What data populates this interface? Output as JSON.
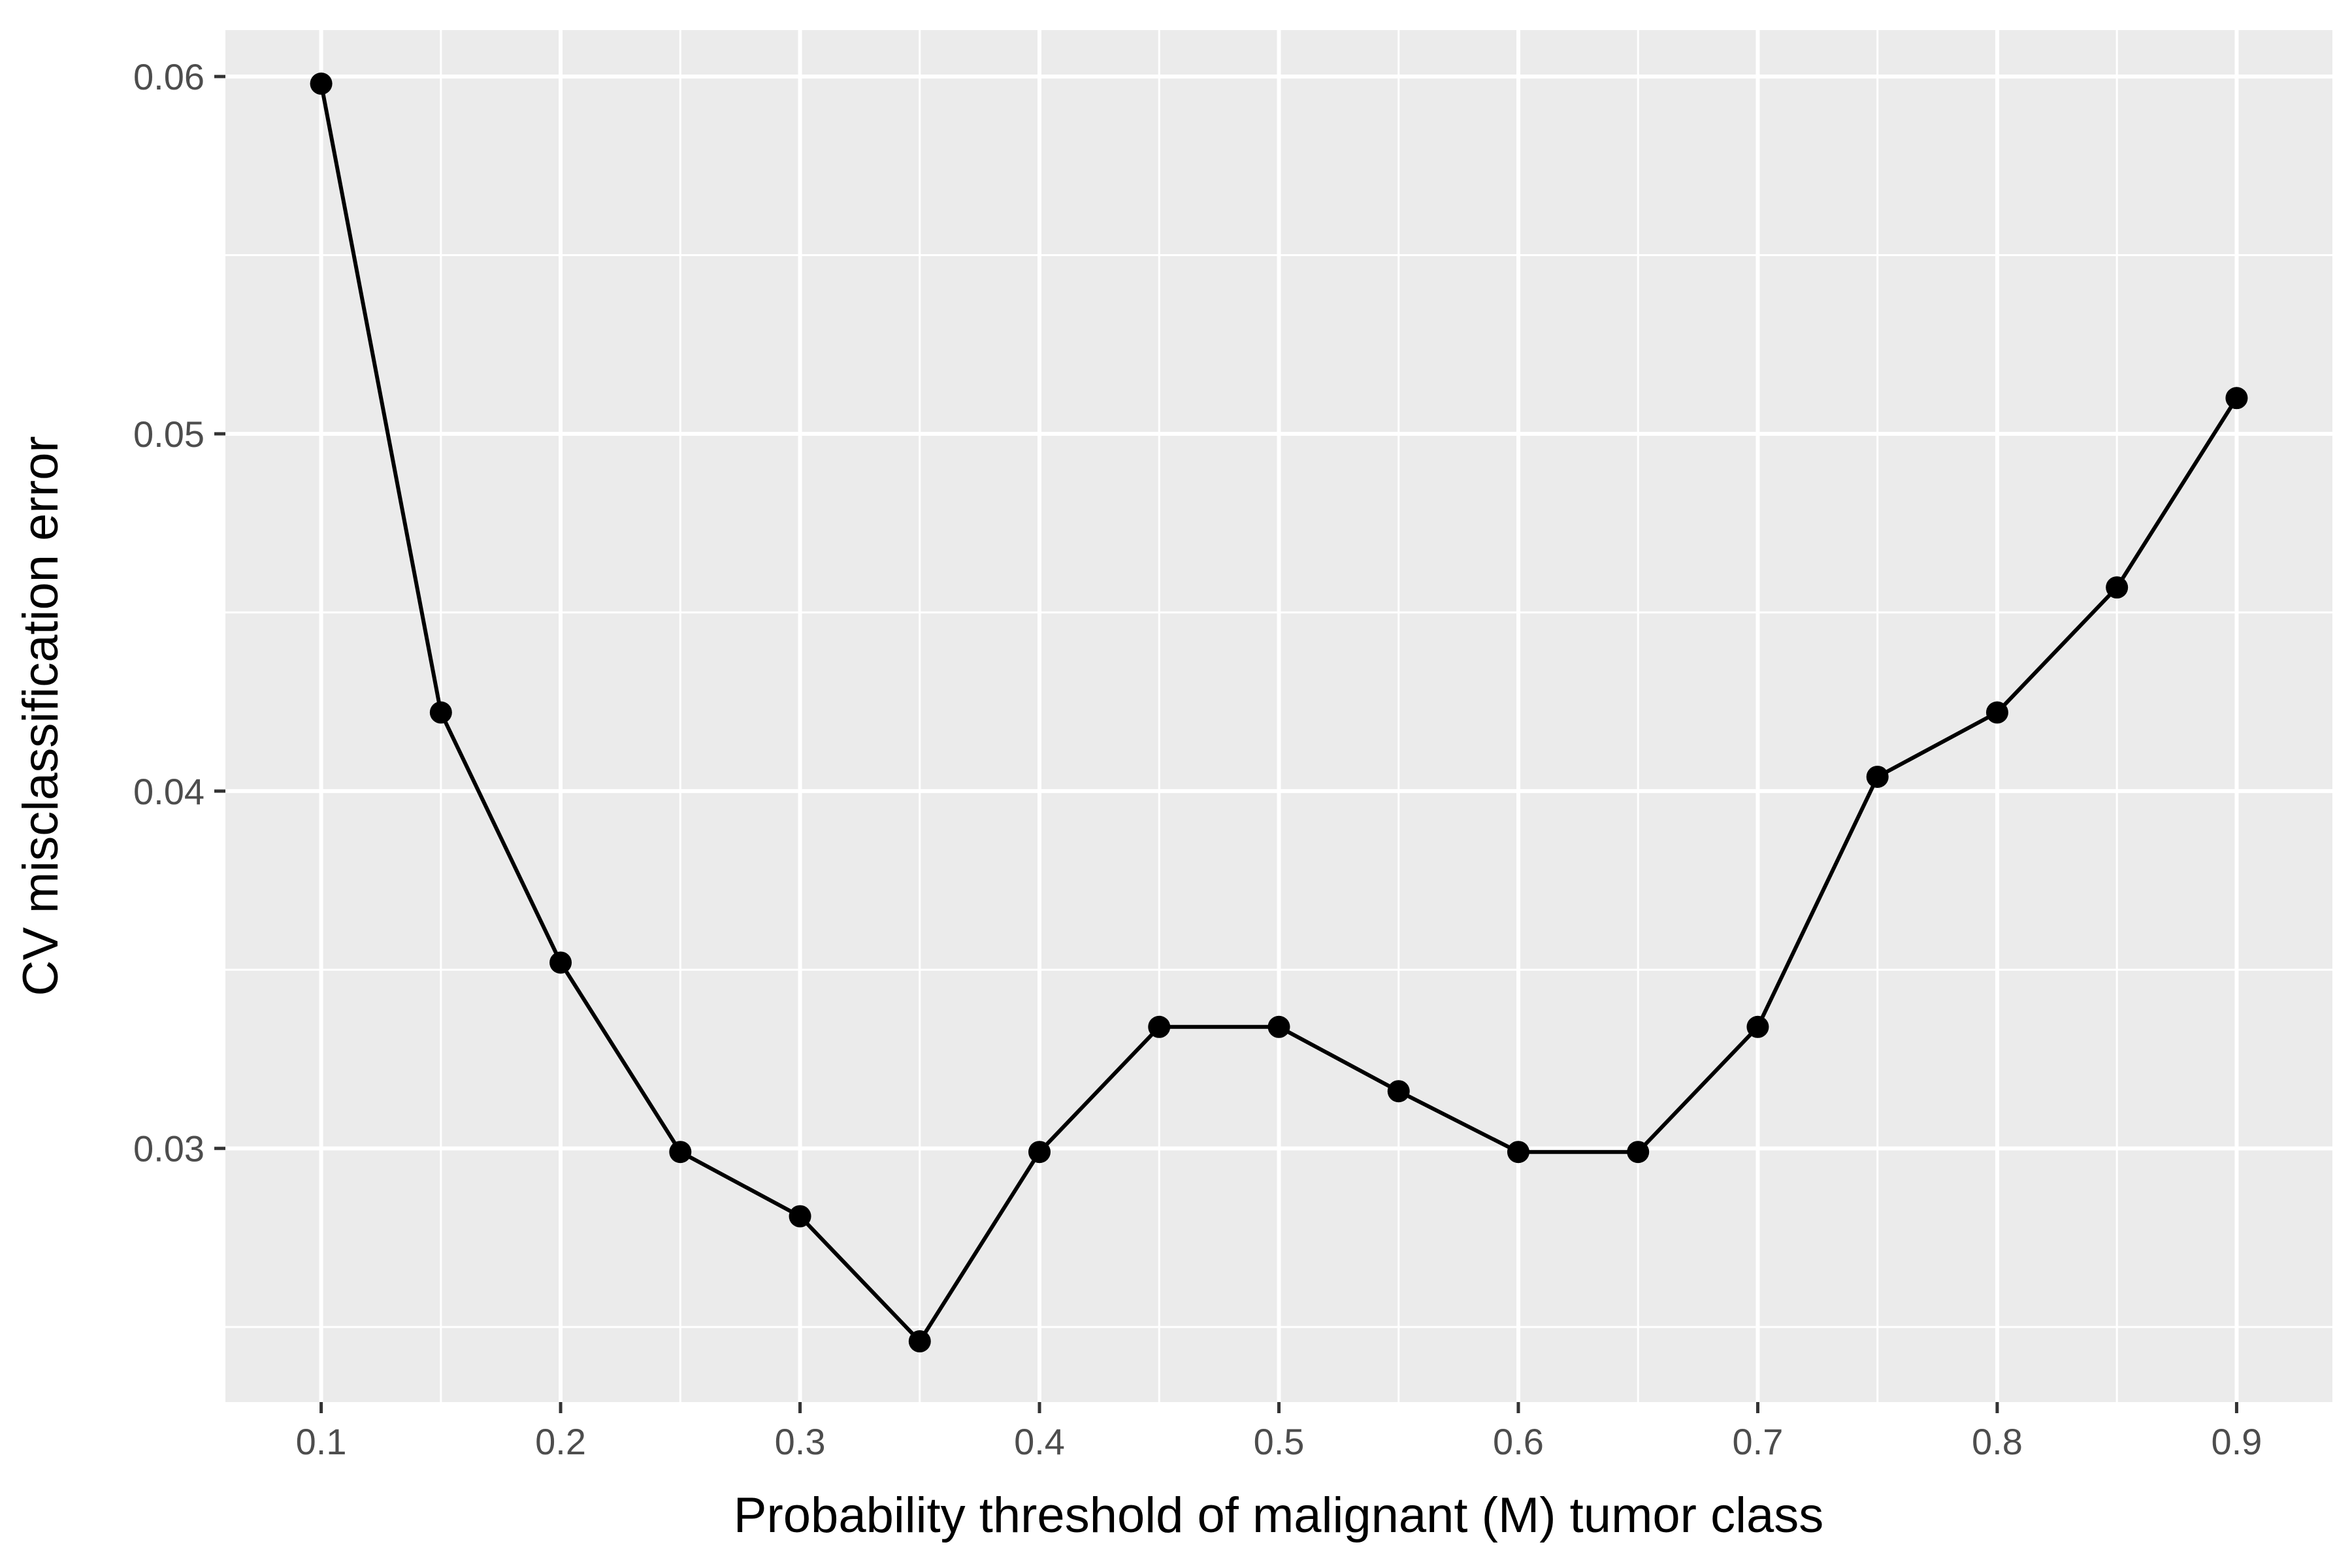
{
  "chart_data": {
    "type": "line",
    "title": "",
    "xlabel": "Probability threshold of malignant (M) tumor class",
    "ylabel": "CV misclassification error",
    "x": [
      0.1,
      0.15,
      0.2,
      0.25,
      0.3,
      0.35,
      0.4,
      0.45,
      0.5,
      0.55,
      0.6,
      0.65,
      0.7,
      0.75,
      0.8,
      0.85,
      0.9
    ],
    "series": [
      {
        "values": [
          0.0598,
          0.0422,
          0.0352,
          0.0299,
          0.0281,
          0.0246,
          0.0299,
          0.0334,
          0.0334,
          0.0316,
          0.0299,
          0.0299,
          0.0334,
          0.0404,
          0.0422,
          0.0457,
          0.051
        ]
      }
    ],
    "xlim": [
      0.06,
      0.94
    ],
    "ylim": [
      0.0229,
      0.0613
    ],
    "x_major_ticks": [
      0.1,
      0.2,
      0.3,
      0.4,
      0.5,
      0.6,
      0.7,
      0.8,
      0.9
    ],
    "x_tick_labels": [
      "0.1",
      "0.2",
      "0.3",
      "0.4",
      "0.5",
      "0.6",
      "0.7",
      "0.8",
      "0.9"
    ],
    "x_minor_ticks": [
      0.15,
      0.25,
      0.35,
      0.45,
      0.55,
      0.65,
      0.75,
      0.85
    ],
    "y_major_ticks": [
      0.03,
      0.04,
      0.05,
      0.06
    ],
    "y_tick_labels": [
      "0.03",
      "0.04",
      "0.05",
      "0.06"
    ],
    "y_minor_ticks": [
      0.025,
      0.035,
      0.045,
      0.055
    ],
    "grid": true,
    "legend": "none",
    "colors": {
      "panel_background": "#ebebeb",
      "grid": "#ffffff",
      "line": "#000000",
      "points": "#000000",
      "tick_text": "#4d4d4d",
      "axis_text": "#000000"
    }
  }
}
